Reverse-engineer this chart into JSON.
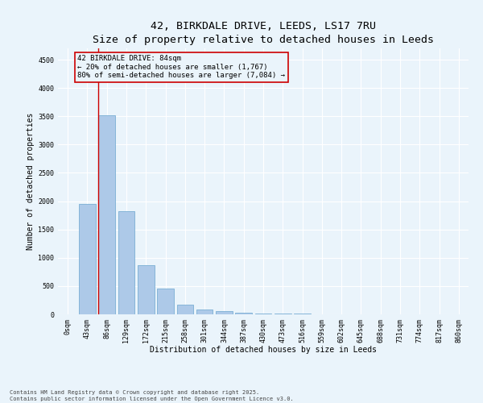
{
  "title_line1": "42, BIRKDALE DRIVE, LEEDS, LS17 7RU",
  "title_line2": "Size of property relative to detached houses in Leeds",
  "xlabel": "Distribution of detached houses by size in Leeds",
  "ylabel": "Number of detached properties",
  "bar_labels": [
    "0sqm",
    "43sqm",
    "86sqm",
    "129sqm",
    "172sqm",
    "215sqm",
    "258sqm",
    "301sqm",
    "344sqm",
    "387sqm",
    "430sqm",
    "473sqm",
    "516sqm",
    "559sqm",
    "602sqm",
    "645sqm",
    "688sqm",
    "731sqm",
    "774sqm",
    "817sqm",
    "860sqm"
  ],
  "bar_values": [
    5,
    1950,
    3520,
    1820,
    870,
    460,
    170,
    90,
    50,
    30,
    20,
    10,
    8,
    5,
    4,
    3,
    3,
    2,
    2,
    2,
    2
  ],
  "bar_color": "#adc9e8",
  "bar_edge_color": "#7aafd4",
  "background_color": "#eaf4fb",
  "vline_color": "#cc0000",
  "annotation_text": "42 BIRKDALE DRIVE: 84sqm\n← 20% of detached houses are smaller (1,767)\n80% of semi-detached houses are larger (7,084) →",
  "annotation_box_color": "#cc0000",
  "ylim": [
    0,
    4700
  ],
  "yticks": [
    0,
    500,
    1000,
    1500,
    2000,
    2500,
    3000,
    3500,
    4000,
    4500
  ],
  "footnote": "Contains HM Land Registry data © Crown copyright and database right 2025.\nContains public sector information licensed under the Open Government Licence v3.0.",
  "title_fontsize": 9.5,
  "label_fontsize": 7,
  "tick_fontsize": 6,
  "annot_fontsize": 6.5,
  "footnote_fontsize": 5
}
